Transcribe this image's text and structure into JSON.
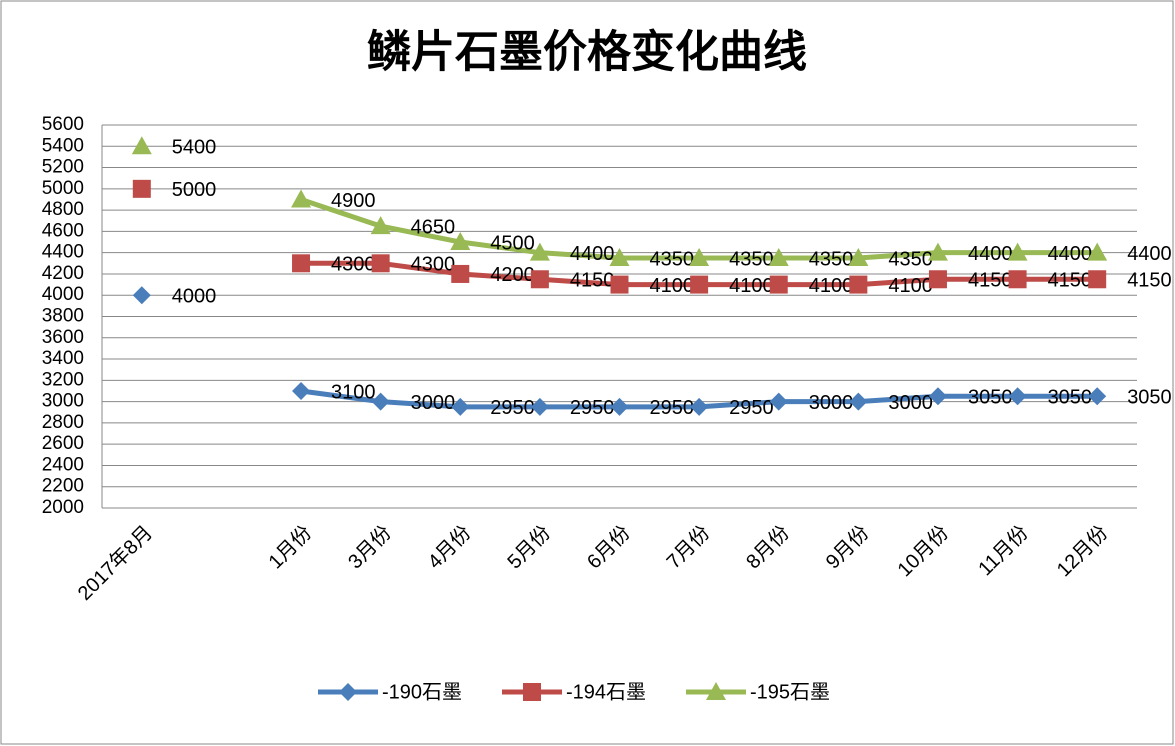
{
  "chart_data": {
    "type": "line",
    "title": "鳞片石墨价格变化曲线",
    "categories": [
      "2017年8月",
      null,
      "1月份",
      "3月份",
      "4月份",
      "5月份",
      "6月份",
      "7月份",
      "8月份",
      "9月份",
      "10月份",
      "11月份",
      "12月份"
    ],
    "series": [
      {
        "name": "-190石墨",
        "color": "#4a7ebb",
        "marker": "diamond",
        "values": [
          4000,
          null,
          3100,
          3000,
          2950,
          2950,
          2950,
          2950,
          3000,
          3000,
          3050,
          3050,
          3050
        ]
      },
      {
        "name": "-194石墨",
        "color": "#be4b48",
        "marker": "square",
        "values": [
          5000,
          null,
          4300,
          4300,
          4200,
          4150,
          4100,
          4100,
          4100,
          4100,
          4150,
          4150,
          4150
        ]
      },
      {
        "name": "-195石墨",
        "color": "#98b954",
        "marker": "triangle",
        "values": [
          5400,
          null,
          4900,
          4650,
          4500,
          4400,
          4350,
          4350,
          4350,
          4350,
          4400,
          4400,
          4400
        ]
      }
    ],
    "ylim": [
      2000,
      5600
    ],
    "yticks": [
      2000,
      2200,
      2400,
      2600,
      2800,
      3000,
      3200,
      3400,
      3600,
      3800,
      4000,
      4200,
      4400,
      4600,
      4800,
      5000,
      5200,
      5400,
      5600
    ],
    "grid": true,
    "legend": "bottom"
  }
}
